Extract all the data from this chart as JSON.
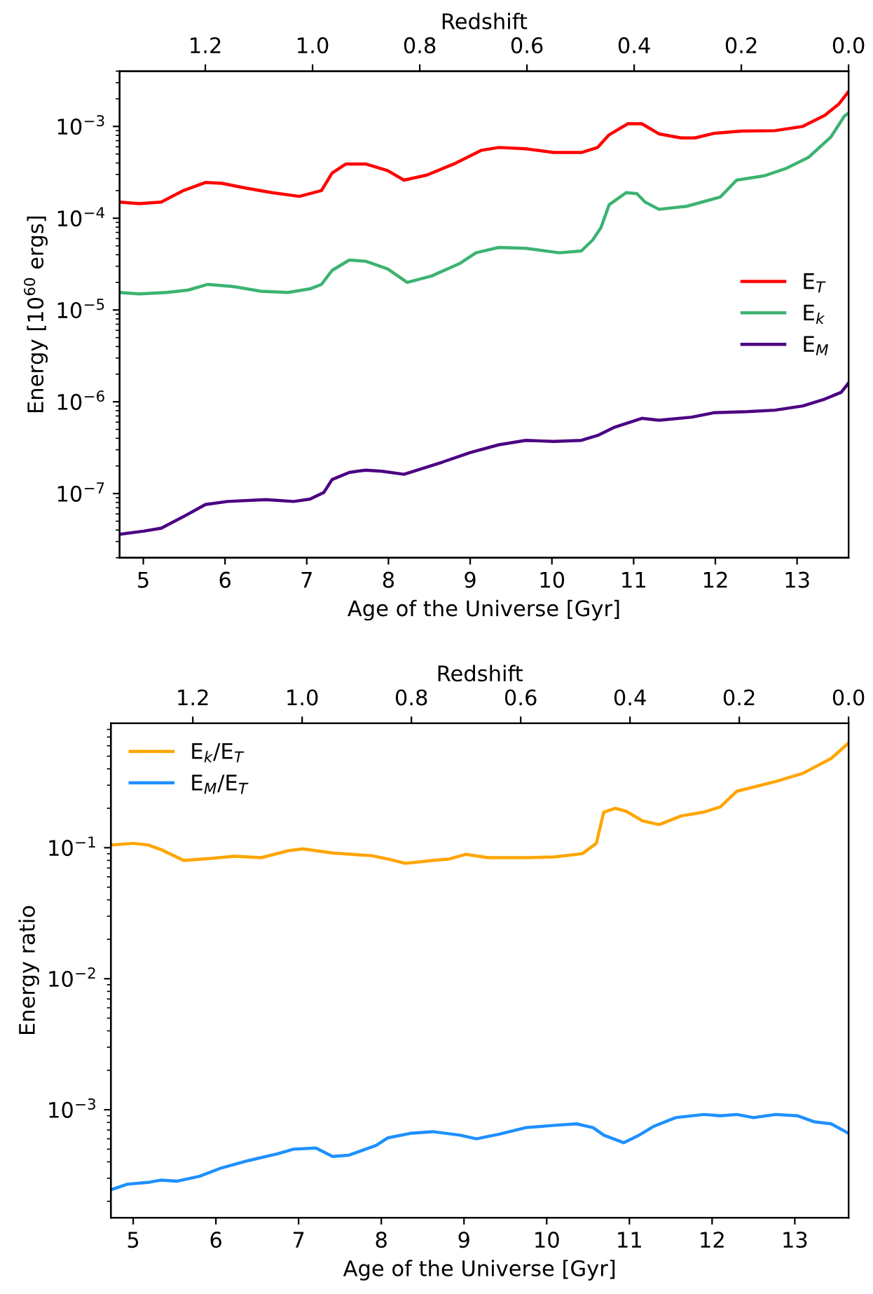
{
  "chart_data": [
    {
      "type": "line",
      "xlabel": "Age of the Universe [Gyr]",
      "ylabel": "Energy [10$^{60}$ ergs]",
      "x2label": "Redshift",
      "log": "y",
      "legend": "center right",
      "grid": false,
      "marker": "none",
      "line_style": "solid",
      "xlim": [
        4.71,
        13.63
      ],
      "xticks": [
        5,
        6,
        7,
        8,
        9,
        10,
        11,
        12,
        13
      ],
      "x2lim": [
        1.36,
        0.0
      ],
      "x2ticks": [
        {
          "value": 1.2,
          "label": "1.2"
        },
        {
          "value": 1.0,
          "label": "1.0"
        },
        {
          "value": 0.8,
          "label": "0.8"
        },
        {
          "value": 0.6,
          "label": "0.6"
        },
        {
          "value": 0.4,
          "label": "0.4"
        },
        {
          "value": 0.2,
          "label": "0.2"
        },
        {
          "value": 0.0,
          "label": "0.0"
        }
      ],
      "ylim": [
        2e-08,
        0.004
      ],
      "yticks": [
        {
          "value": 1e-07,
          "label": "10$^{−7}$"
        },
        {
          "value": 1e-06,
          "label": "10$^{−6}$"
        },
        {
          "value": 1e-05,
          "label": "10$^{−5}$"
        },
        {
          "value": 0.0001,
          "label": "10$^{−4}$"
        },
        {
          "value": 0.001,
          "label": "10$^{−3}$"
        }
      ],
      "series": [
        {
          "name": "E$_{T}$",
          "color": "#ff0000",
          "x": [
            4.71,
            4.95,
            5.22,
            5.49,
            5.76,
            5.96,
            6.23,
            6.57,
            6.91,
            7.18,
            7.31,
            7.48,
            7.72,
            7.99,
            8.19,
            8.47,
            8.8,
            9.14,
            9.35,
            9.68,
            10.02,
            10.36,
            10.56,
            10.7,
            10.93,
            11.1,
            11.31,
            11.58,
            11.75,
            11.98,
            12.32,
            12.73,
            13.07,
            13.34,
            13.51,
            13.63
          ],
          "values": [
            0.00015,
            0.000144,
            0.00015,
            0.0002,
            0.000245,
            0.00024,
            0.000215,
            0.00019,
            0.000173,
            0.0002,
            0.00031,
            0.00039,
            0.00039,
            0.00033,
            0.00026,
            0.000295,
            0.00039,
            0.00055,
            0.00059,
            0.00057,
            0.00052,
            0.00052,
            0.00059,
            0.00081,
            0.00107,
            0.00107,
            0.00083,
            0.00075,
            0.00075,
            0.00084,
            0.00089,
            0.0009,
            0.001,
            0.00132,
            0.00175,
            0.0024
          ]
        },
        {
          "name": "E$_{k}$",
          "color": "#3cb371",
          "x": [
            4.71,
            4.95,
            5.28,
            5.55,
            5.79,
            6.1,
            6.44,
            6.77,
            7.04,
            7.18,
            7.31,
            7.52,
            7.72,
            7.99,
            8.23,
            8.53,
            8.87,
            9.07,
            9.35,
            9.68,
            10.09,
            10.36,
            10.5,
            10.6,
            10.7,
            10.91,
            11.04,
            11.14,
            11.31,
            11.65,
            12.06,
            12.26,
            12.6,
            12.87,
            13.14,
            13.41,
            13.58,
            13.63
          ],
          "values": [
            1.55e-05,
            1.5e-05,
            1.55e-05,
            1.65e-05,
            1.9e-05,
            1.8e-05,
            1.6e-05,
            1.55e-05,
            1.7e-05,
            1.9e-05,
            2.7e-05,
            3.5e-05,
            3.4e-05,
            2.8e-05,
            2e-05,
            2.35e-05,
            3.2e-05,
            4.2e-05,
            4.8e-05,
            4.7e-05,
            4.2e-05,
            4.4e-05,
            5.8e-05,
            7.9e-05,
            0.00014,
            0.00019,
            0.000185,
            0.00015,
            0.000125,
            0.000135,
            0.00017,
            0.00026,
            0.00029,
            0.00035,
            0.00046,
            0.00076,
            0.0013,
            0.0014
          ]
        },
        {
          "name": "E$_{M}$",
          "color": "#4b0082",
          "x": [
            4.71,
            5.01,
            5.22,
            5.49,
            5.76,
            6.03,
            6.5,
            6.84,
            7.04,
            7.21,
            7.31,
            7.52,
            7.72,
            7.92,
            8.19,
            8.66,
            9.0,
            9.35,
            9.68,
            10.02,
            10.36,
            10.56,
            10.77,
            11.1,
            11.31,
            11.71,
            11.98,
            12.39,
            12.73,
            13.07,
            13.34,
            13.54,
            13.63
          ],
          "values": [
            3.6e-08,
            3.9e-08,
            4.2e-08,
            5.6e-08,
            7.6e-08,
            8.2e-08,
            8.6e-08,
            8.2e-08,
            8.7e-08,
            1.03e-07,
            1.42e-07,
            1.7e-07,
            1.8e-07,
            1.75e-07,
            1.62e-07,
            2.2e-07,
            2.8e-07,
            3.4e-07,
            3.8e-07,
            3.7e-07,
            3.8e-07,
            4.3e-07,
            5.3e-07,
            6.6e-07,
            6.3e-07,
            6.8e-07,
            7.6e-07,
            7.8e-07,
            8.1e-07,
            9e-07,
            1.07e-06,
            1.27e-06,
            1.6e-06
          ]
        }
      ]
    },
    {
      "type": "line",
      "xlabel": "Age of the Universe [Gyr]",
      "ylabel": "Energy ratio",
      "x2label": "Redshift",
      "log": "y",
      "legend": "upper left",
      "grid": false,
      "marker": "none",
      "line_style": "solid",
      "xlim": [
        4.73,
        13.65
      ],
      "xticks": [
        5,
        6,
        7,
        8,
        9,
        10,
        11,
        12,
        13
      ],
      "x2lim": [
        1.35,
        0.0
      ],
      "x2ticks": [
        {
          "value": 1.2,
          "label": "1.2"
        },
        {
          "value": 1.0,
          "label": "1.0"
        },
        {
          "value": 0.8,
          "label": "0.8"
        },
        {
          "value": 0.6,
          "label": "0.6"
        },
        {
          "value": 0.4,
          "label": "0.4"
        },
        {
          "value": 0.2,
          "label": "0.2"
        },
        {
          "value": 0.0,
          "label": "0.0"
        }
      ],
      "ylim": [
        0.00015,
        0.89
      ],
      "yticks": [
        {
          "value": 0.001,
          "label": "10$^{−3}$"
        },
        {
          "value": 0.01,
          "label": "10$^{−2}$"
        },
        {
          "value": 0.1,
          "label": "10$^{−1}$"
        }
      ],
      "series": [
        {
          "name": "E$_{k}$/E$_{T}$",
          "color": "#ffa500",
          "x": [
            4.73,
            5.0,
            5.18,
            5.35,
            5.61,
            5.95,
            6.22,
            6.55,
            6.88,
            7.05,
            7.42,
            7.88,
            8.08,
            8.29,
            8.62,
            8.82,
            9.02,
            9.29,
            9.76,
            10.09,
            10.43,
            10.6,
            10.69,
            10.83,
            10.96,
            11.16,
            11.36,
            11.63,
            11.9,
            12.1,
            12.3,
            12.77,
            13.1,
            13.44,
            13.65
          ],
          "values": [
            0.105,
            0.108,
            0.105,
            0.096,
            0.08,
            0.083,
            0.086,
            0.084,
            0.095,
            0.098,
            0.091,
            0.087,
            0.082,
            0.076,
            0.08,
            0.082,
            0.089,
            0.084,
            0.084,
            0.085,
            0.09,
            0.108,
            0.187,
            0.2,
            0.19,
            0.16,
            0.15,
            0.175,
            0.187,
            0.205,
            0.27,
            0.32,
            0.37,
            0.48,
            0.63
          ]
        },
        {
          "name": "E$_{M}$/E$_{T}$",
          "color": "#1e90ff",
          "x": [
            4.73,
            4.93,
            5.2,
            5.33,
            5.53,
            5.8,
            6.07,
            6.4,
            6.74,
            6.94,
            7.21,
            7.41,
            7.61,
            7.94,
            8.08,
            8.35,
            8.62,
            8.95,
            9.15,
            9.42,
            9.75,
            10.09,
            10.36,
            10.56,
            10.69,
            10.93,
            11.1,
            11.3,
            11.56,
            11.9,
            12.1,
            12.3,
            12.5,
            12.77,
            13.03,
            13.23,
            13.44,
            13.65
          ],
          "values": [
            0.000245,
            0.00027,
            0.00028,
            0.00029,
            0.000285,
            0.00031,
            0.00036,
            0.00041,
            0.00046,
            0.0005,
            0.00051,
            0.00044,
            0.00045,
            0.000535,
            0.00061,
            0.00066,
            0.00068,
            0.00064,
            0.0006,
            0.00065,
            0.00073,
            0.00076,
            0.00078,
            0.00073,
            0.00064,
            0.00056,
            0.00063,
            0.00075,
            0.00087,
            0.00092,
            0.0009,
            0.00092,
            0.00087,
            0.00092,
            0.0009,
            0.00081,
            0.00078,
            0.00066
          ]
        }
      ]
    }
  ]
}
